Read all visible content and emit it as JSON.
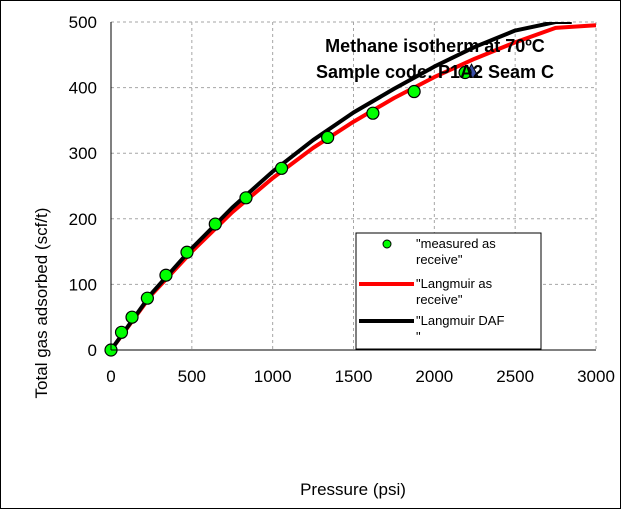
{
  "chart_data": {
    "type": "line",
    "title": "Methane isotherm at 70ºC",
    "subtitle": "Sample code: P1A2 Seam C",
    "xlabel": "Pressure (psi)",
    "ylabel": "Total gas adsorbed (scf/t)",
    "xlim": [
      0,
      3000
    ],
    "ylim": [
      0,
      500
    ],
    "x_ticks": [
      0,
      500,
      1000,
      1500,
      2000,
      2500,
      3000
    ],
    "y_ticks": [
      0,
      100,
      200,
      300,
      400,
      500
    ],
    "x_tick_labels": [
      "0",
      "500",
      "1000",
      "1500",
      "2000",
      "2500",
      "3000"
    ],
    "y_tick_labels": [
      "0",
      "100",
      "200",
      "300",
      "400",
      "500"
    ],
    "grid": true,
    "legend_position": "lower-right",
    "series": [
      {
        "name": "\"measured as receive\"",
        "type": "scatter",
        "color": "#00ff00",
        "x": [
          0,
          65,
          130,
          225,
          340,
          470,
          645,
          835,
          1055,
          1340,
          1620,
          1875,
          2190
        ],
        "y": [
          0,
          27,
          50,
          79,
          114,
          149,
          192,
          232,
          277,
          324,
          361,
          394,
          423
        ]
      },
      {
        "name": "\"Langmuir as receive\"",
        "type": "line",
        "color": "#ff0000",
        "x": [
          0,
          250,
          500,
          750,
          1000,
          1250,
          1500,
          1750,
          2000,
          2250,
          2500,
          2750,
          3000
        ],
        "y": [
          0,
          84,
          150,
          210,
          262,
          308,
          348,
          384,
          416,
          444,
          469,
          491,
          495
        ]
      },
      {
        "name": "\"Langmuir DAF \"",
        "type": "line",
        "color": "#000000",
        "x": [
          0,
          250,
          500,
          750,
          1000,
          1250,
          1500,
          1750,
          2000,
          2250,
          2500,
          2750,
          2850
        ],
        "y": [
          0,
          86,
          155,
          217,
          272,
          320,
          362,
          398,
          432,
          462,
          487,
          500,
          500
        ]
      }
    ],
    "annotation_marker": {
      "shape": "triangle",
      "color": "#3a4fa8",
      "x": 2230,
      "y": 425
    }
  }
}
